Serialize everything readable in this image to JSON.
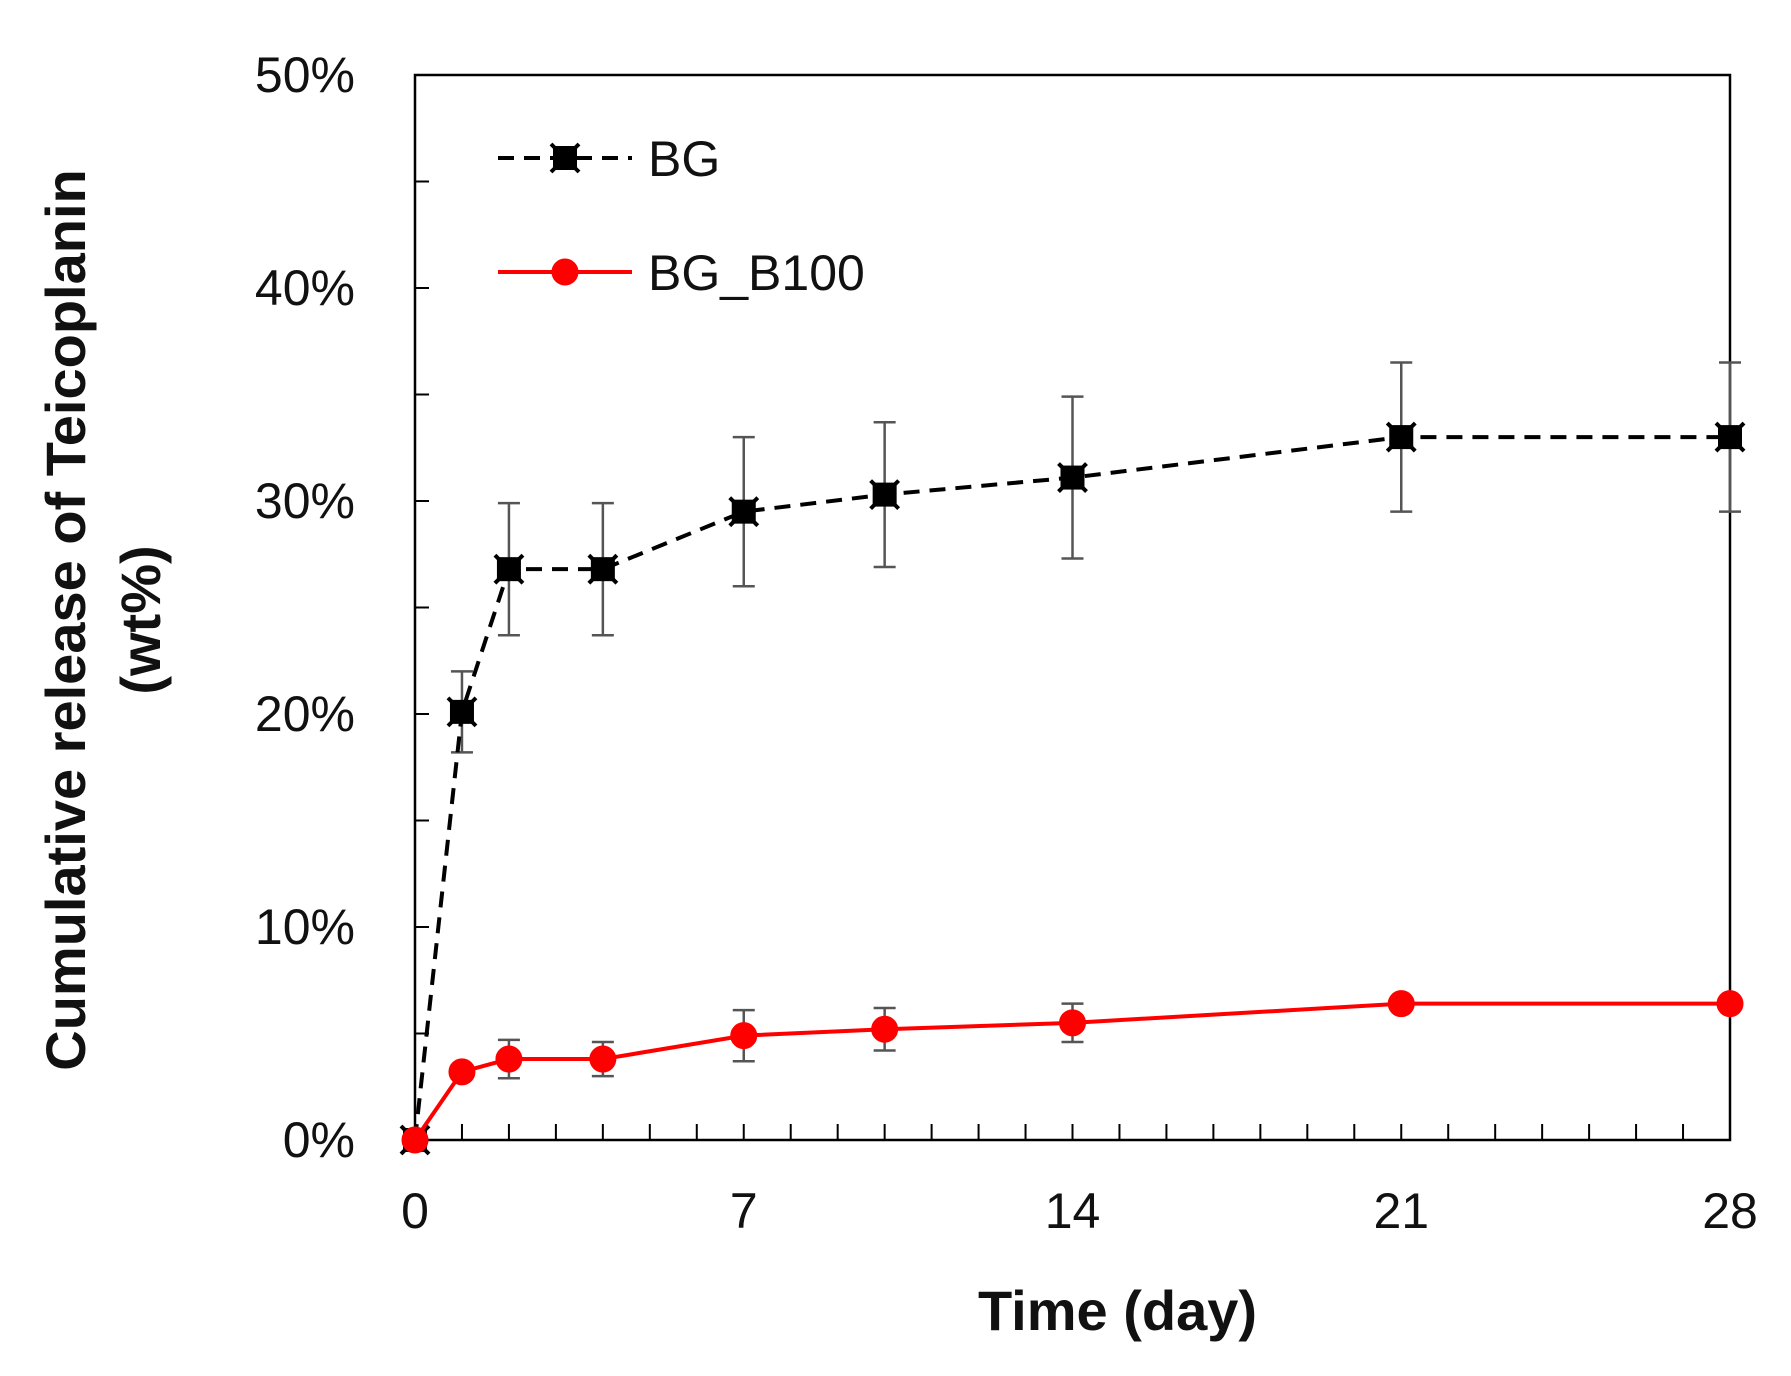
{
  "chart_data": {
    "type": "line",
    "title": "",
    "xlabel": "Time (day)",
    "ylabel": "Cumulative release of Teicoplanin (wt%)",
    "ylabel_lines": [
      "Cumulative release of Teicoplanin",
      "(wt%)"
    ],
    "xlim": [
      0,
      28
    ],
    "ylim": [
      0,
      50
    ],
    "x_ticks": [
      0,
      7,
      14,
      21,
      28
    ],
    "x_tick_labels": [
      "0",
      "7",
      "14",
      "21",
      "28"
    ],
    "x_minor_step": 1,
    "y_ticks": [
      0,
      10,
      20,
      30,
      40,
      50
    ],
    "y_tick_labels": [
      "0%",
      "10%",
      "20%",
      "30%",
      "40%",
      "50%"
    ],
    "y_minor_step": 5,
    "legend_position": "top-left",
    "series": [
      {
        "name": "BG",
        "color": "#000000",
        "line_style": "dashed",
        "marker": "square-x",
        "x": [
          0,
          1,
          2,
          4,
          7,
          10,
          14,
          21,
          28
        ],
        "values": [
          0,
          20.1,
          26.8,
          26.8,
          29.5,
          30.3,
          31.1,
          33.0,
          33.0
        ],
        "errors": [
          0,
          1.9,
          3.1,
          3.1,
          3.5,
          3.4,
          3.8,
          3.5,
          3.5
        ]
      },
      {
        "name": "BG_B100",
        "color": "#ff0000",
        "line_style": "solid",
        "marker": "circle",
        "x": [
          0,
          1,
          2,
          4,
          7,
          10,
          14,
          21,
          28
        ],
        "values": [
          0,
          3.2,
          3.8,
          3.8,
          4.9,
          5.2,
          5.5,
          6.4,
          6.4
        ],
        "errors": [
          0,
          0.3,
          0.9,
          0.8,
          1.2,
          1.0,
          0.9,
          0.3,
          0.3
        ]
      }
    ]
  }
}
